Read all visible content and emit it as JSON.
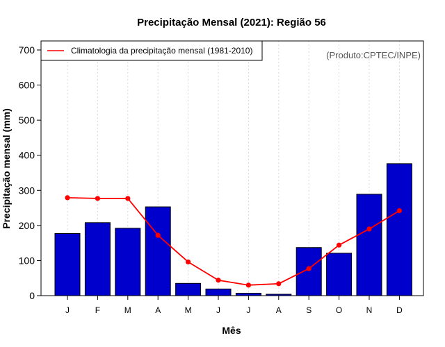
{
  "chart_data": {
    "type": "bar",
    "title": "Precipitação Mensal (2021): Região 56",
    "xlabel": "Mês",
    "ylabel": "Precipitação mensal (mm)",
    "ylim": [
      0,
      700
    ],
    "yticks": [
      "0",
      "100",
      "200",
      "300",
      "400",
      "500",
      "600",
      "700"
    ],
    "grid": "vertical dotted",
    "categories": [
      "J",
      "F",
      "M",
      "A",
      "M",
      "J",
      "J",
      "A",
      "S",
      "O",
      "N",
      "D"
    ],
    "series": [
      {
        "name": "Precipitação mensal 2021",
        "kind": "bar",
        "color": "#0000cc",
        "values": [
          177,
          208,
          192,
          253,
          35,
          19,
          7,
          4,
          137,
          121,
          289,
          376
        ]
      },
      {
        "name": "Climatologia da precipitação mensal (1981-2010)",
        "kind": "line",
        "color": "#ff0000",
        "values": [
          279,
          277,
          277,
          172,
          96,
          44,
          30,
          34,
          77,
          144,
          190,
          242
        ]
      }
    ],
    "legend": {
      "position": "top-left",
      "label": "Climatologia da precipitação mensal (1981-2010)"
    },
    "annotation": "(Produto:CPTEC/INPE)"
  }
}
